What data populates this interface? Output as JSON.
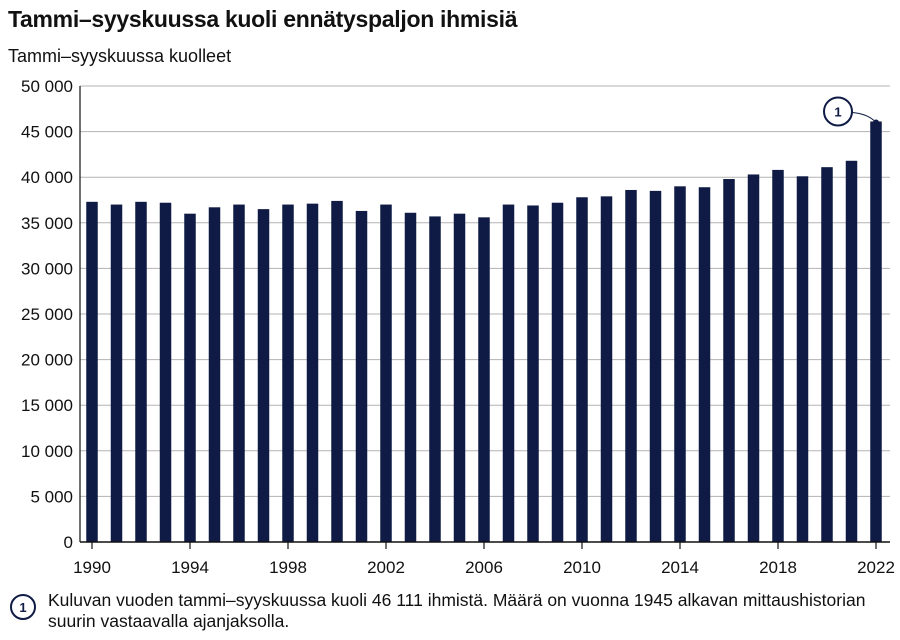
{
  "title": "Tammi–syyskuussa kuoli ennätyspaljon ihmisiä",
  "subtitle": "Tammi–syyskuussa kuolleet",
  "footnote": {
    "badge": "1",
    "text": "Kuluvan vuoden tammi–syyskuussa kuoli 46 111 ihmistä. Määrä on vuonna 1945 alkavan mittaushistorian suurin vastaavalla ajanjaksolla."
  },
  "colors": {
    "bar": "#0f1b45",
    "grid": "#b3b3b3",
    "axis": "#111111"
  },
  "chart_data": {
    "type": "bar",
    "title": "Tammi–syyskuussa kuoli ennätyspaljon ihmisiä",
    "ylabel": "Tammi–syyskuussa kuolleet",
    "xlabel": "",
    "categories": [
      1990,
      1991,
      1992,
      1993,
      1994,
      1995,
      1996,
      1997,
      1998,
      1999,
      2000,
      2001,
      2002,
      2003,
      2004,
      2005,
      2006,
      2007,
      2008,
      2009,
      2010,
      2011,
      2012,
      2013,
      2014,
      2015,
      2016,
      2017,
      2018,
      2019,
      2020,
      2021,
      2022
    ],
    "values": [
      37300,
      37000,
      37300,
      37200,
      36000,
      36700,
      37000,
      36500,
      37000,
      37100,
      37400,
      36300,
      37000,
      36100,
      35700,
      36000,
      35600,
      37000,
      36900,
      37200,
      37800,
      37900,
      38600,
      38500,
      39000,
      38900,
      39800,
      40300,
      40800,
      40100,
      41100,
      41800,
      46111
    ],
    "ylim": [
      0,
      50000
    ],
    "yticks": [
      0,
      5000,
      10000,
      15000,
      20000,
      25000,
      30000,
      35000,
      40000,
      45000,
      50000
    ],
    "ytick_labels": [
      "0",
      "5 000",
      "10 000",
      "15 000",
      "20 000",
      "25 000",
      "30 000",
      "35 000",
      "40 000",
      "45 000",
      "50 000"
    ],
    "xtick_labels": [
      "1990",
      "1994",
      "1998",
      "2002",
      "2006",
      "2010",
      "2014",
      "2018",
      "2022"
    ],
    "grid": true,
    "annotation": {
      "category": 2022,
      "label": "1"
    }
  }
}
